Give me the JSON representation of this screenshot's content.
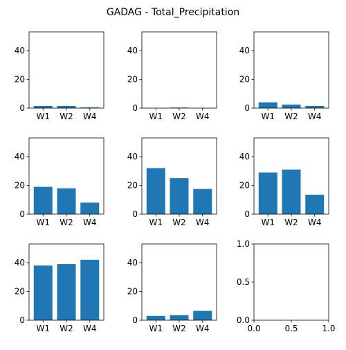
{
  "figure": {
    "title": "GADAG - Total_Precipitation",
    "bar_color": "#1f77b4"
  },
  "chart_data": [
    {
      "type": "bar",
      "categories": [
        "W1",
        "W2",
        "W4"
      ],
      "values": [
        1.5,
        1.5,
        0.5
      ],
      "ylim": [
        0,
        53
      ],
      "yticks": [
        0,
        20,
        40
      ]
    },
    {
      "type": "bar",
      "categories": [
        "W1",
        "W2",
        "W4"
      ],
      "values": [
        0.1,
        0.4,
        0.1
      ],
      "ylim": [
        0,
        53
      ],
      "yticks": [
        0,
        20,
        40
      ]
    },
    {
      "type": "bar",
      "categories": [
        "W1",
        "W2",
        "W4"
      ],
      "values": [
        4,
        2.5,
        1.5
      ],
      "ylim": [
        0,
        53
      ],
      "yticks": [
        0,
        20,
        40
      ]
    },
    {
      "type": "bar",
      "categories": [
        "W1",
        "W2",
        "W4"
      ],
      "values": [
        19,
        18,
        8
      ],
      "ylim": [
        0,
        53
      ],
      "yticks": [
        0,
        20,
        40
      ]
    },
    {
      "type": "bar",
      "categories": [
        "W1",
        "W2",
        "W4"
      ],
      "values": [
        32,
        25,
        17.5
      ],
      "ylim": [
        0,
        53
      ],
      "yticks": [
        0,
        20,
        40
      ]
    },
    {
      "type": "bar",
      "categories": [
        "W1",
        "W2",
        "W4"
      ],
      "values": [
        29,
        31,
        13.5
      ],
      "ylim": [
        0,
        53
      ],
      "yticks": [
        0,
        20,
        40
      ]
    },
    {
      "type": "bar",
      "categories": [
        "W1",
        "W2",
        "W4"
      ],
      "values": [
        38,
        39,
        42
      ],
      "ylim": [
        0,
        53
      ],
      "yticks": [
        0,
        20,
        40
      ]
    },
    {
      "type": "bar",
      "categories": [
        "W1",
        "W2",
        "W4"
      ],
      "values": [
        3,
        3.5,
        6.5
      ],
      "ylim": [
        0,
        53
      ],
      "yticks": [
        0,
        20,
        40
      ]
    },
    {
      "type": "empty",
      "xlim": [
        0,
        1
      ],
      "ylim": [
        0,
        1
      ],
      "xticks": [
        "0.0",
        "0.5",
        "1.0"
      ],
      "yticks": [
        "0.0",
        "0.5",
        "1.0"
      ]
    }
  ]
}
